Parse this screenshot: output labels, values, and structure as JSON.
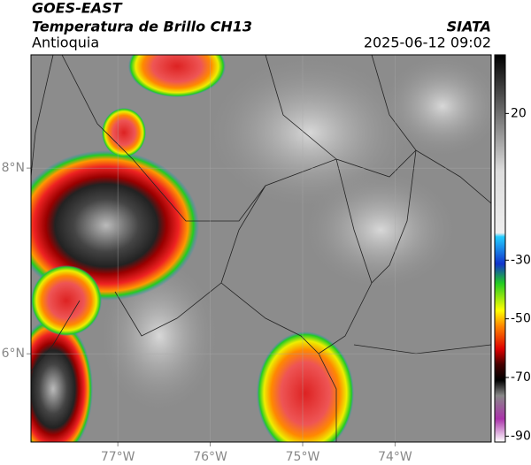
{
  "header": {
    "title": "GOES-EAST",
    "subtitle": "Temperatura de Brillo CH13",
    "source": "SIATA",
    "region": "Antioquia",
    "datetime": "2025-06-12 09:02"
  },
  "map": {
    "xlim": [
      -77.94,
      -72.96
    ],
    "ylim": [
      5.05,
      9.22
    ],
    "xticks": [
      {
        "value": -77,
        "label": "77°W"
      },
      {
        "value": -76,
        "label": "76°W"
      },
      {
        "value": -75,
        "label": "75°W"
      },
      {
        "value": -74,
        "label": "74°W"
      }
    ],
    "yticks": [
      {
        "value": 8,
        "label": "8°N"
      },
      {
        "value": 6,
        "label": "6°N"
      }
    ]
  },
  "colorbar": {
    "lim": [
      -92,
      40
    ],
    "ticks": [
      20,
      -30,
      -50,
      -70,
      -90
    ]
  }
}
